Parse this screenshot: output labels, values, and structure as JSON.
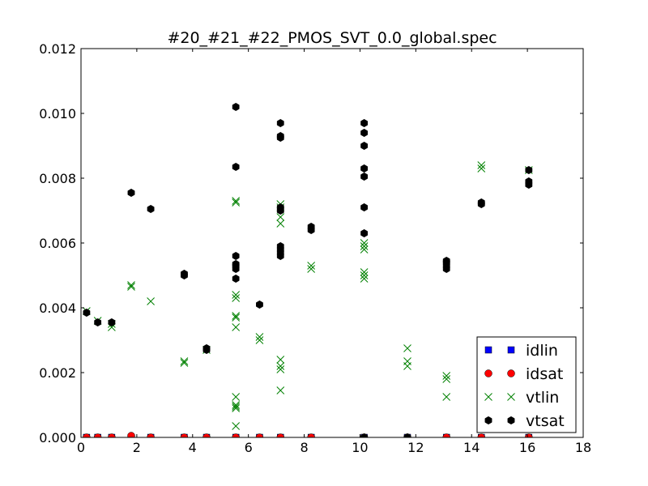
{
  "chart_data": {
    "type": "scatter",
    "title": "#20_#21_#22_PMOS_SVT_0.0_global.spec",
    "xlabel": "",
    "ylabel": "",
    "xlim": [
      0,
      18
    ],
    "ylim": [
      0,
      0.012
    ],
    "x_ticks": [
      "0",
      "2",
      "4",
      "6",
      "8",
      "10",
      "12",
      "14",
      "16",
      "18"
    ],
    "y_ticks": [
      "0.000",
      "0.002",
      "0.004",
      "0.006",
      "0.008",
      "0.010",
      "0.012"
    ],
    "grid": false,
    "legend_position": "lower-right",
    "series": [
      {
        "name": "idlin",
        "marker": "square",
        "color": "#0000ff",
        "points": [
          [
            0.2,
            0
          ],
          [
            0.6,
            0
          ],
          [
            1.1,
            0
          ],
          [
            1.8,
            0
          ],
          [
            2.5,
            0
          ],
          [
            3.7,
            0
          ],
          [
            4.5,
            0
          ],
          [
            5.55,
            0
          ],
          [
            6.4,
            0
          ],
          [
            7.15,
            0
          ],
          [
            8.25,
            0
          ],
          [
            10.15,
            0
          ],
          [
            11.7,
            0
          ],
          [
            13.1,
            0
          ],
          [
            14.35,
            0
          ],
          [
            16.05,
            0
          ]
        ]
      },
      {
        "name": "idsat",
        "marker": "circle",
        "color": "#ff0000",
        "points": [
          [
            0.2,
            0
          ],
          [
            0.6,
            0
          ],
          [
            1.1,
            0
          ],
          [
            1.8,
            5e-05
          ],
          [
            2.5,
            0
          ],
          [
            3.7,
            0
          ],
          [
            4.5,
            0
          ],
          [
            5.55,
            0
          ],
          [
            6.4,
            0
          ],
          [
            7.15,
            0
          ],
          [
            8.25,
            0
          ],
          [
            10.15,
            0
          ],
          [
            11.7,
            0
          ],
          [
            13.1,
            0
          ],
          [
            14.35,
            0
          ],
          [
            16.05,
            0
          ]
        ]
      },
      {
        "name": "vtlin",
        "marker": "x",
        "color": "#008000",
        "points": [
          [
            0.2,
            0.0039
          ],
          [
            0.6,
            0.0036
          ],
          [
            1.1,
            0.0035
          ],
          [
            1.1,
            0.0034
          ],
          [
            1.8,
            0.0047
          ],
          [
            1.8,
            0.00465
          ],
          [
            2.5,
            0.0042
          ],
          [
            3.7,
            0.00235
          ],
          [
            3.7,
            0.0023
          ],
          [
            4.5,
            0.0027
          ],
          [
            5.55,
            0.0073
          ],
          [
            5.55,
            0.00725
          ],
          [
            5.55,
            0.0044
          ],
          [
            5.55,
            0.0043
          ],
          [
            5.55,
            0.00375
          ],
          [
            5.55,
            0.0037
          ],
          [
            5.55,
            0.0034
          ],
          [
            5.55,
            0.00125
          ],
          [
            5.55,
            0.001
          ],
          [
            5.55,
            0.00095
          ],
          [
            5.55,
            0.0009
          ],
          [
            5.55,
            0.00035
          ],
          [
            6.4,
            0.0031
          ],
          [
            6.4,
            0.003
          ],
          [
            7.15,
            0.0072
          ],
          [
            7.15,
            0.0071
          ],
          [
            7.15,
            0.0068
          ],
          [
            7.15,
            0.0066
          ],
          [
            7.15,
            0.0024
          ],
          [
            7.15,
            0.0022
          ],
          [
            7.15,
            0.0021
          ],
          [
            7.15,
            0.00145
          ],
          [
            8.25,
            0.0053
          ],
          [
            8.25,
            0.0052
          ],
          [
            10.15,
            0.006
          ],
          [
            10.15,
            0.0059
          ],
          [
            10.15,
            0.0058
          ],
          [
            10.15,
            0.0051
          ],
          [
            10.15,
            0.005
          ],
          [
            10.15,
            0.0049
          ],
          [
            11.7,
            0.00275
          ],
          [
            11.7,
            0.00235
          ],
          [
            11.7,
            0.0022
          ],
          [
            13.1,
            0.0019
          ],
          [
            13.1,
            0.0018
          ],
          [
            13.1,
            0.00125
          ],
          [
            14.35,
            0.0084
          ],
          [
            14.35,
            0.0083
          ],
          [
            16.05,
            0.00825
          ]
        ]
      },
      {
        "name": "vtsat",
        "marker": "hexagon",
        "color": "#000000",
        "points": [
          [
            0.2,
            0.00385
          ],
          [
            0.6,
            0.00355
          ],
          [
            1.1,
            0.00355
          ],
          [
            1.8,
            0.00755
          ],
          [
            2.5,
            0.00705
          ],
          [
            3.7,
            0.00505
          ],
          [
            3.7,
            0.005
          ],
          [
            4.5,
            0.00275
          ],
          [
            4.5,
            0.0027
          ],
          [
            5.55,
            0.0102
          ],
          [
            5.55,
            0.00835
          ],
          [
            5.55,
            0.0056
          ],
          [
            5.55,
            0.00535
          ],
          [
            5.55,
            0.0053
          ],
          [
            5.55,
            0.0052
          ],
          [
            5.55,
            0.0049
          ],
          [
            6.4,
            0.0041
          ],
          [
            7.15,
            0.0097
          ],
          [
            7.15,
            0.0093
          ],
          [
            7.15,
            0.00925
          ],
          [
            7.15,
            0.0071
          ],
          [
            7.15,
            0.007
          ],
          [
            7.15,
            0.0059
          ],
          [
            7.15,
            0.0058
          ],
          [
            7.15,
            0.0057
          ],
          [
            7.15,
            0.0056
          ],
          [
            8.25,
            0.0065
          ],
          [
            8.25,
            0.0064
          ],
          [
            10.15,
            0.0097
          ],
          [
            10.15,
            0.0094
          ],
          [
            10.15,
            0.009
          ],
          [
            10.15,
            0.0083
          ],
          [
            10.15,
            0.00805
          ],
          [
            10.15,
            0.0071
          ],
          [
            10.15,
            0.0063
          ],
          [
            10.15,
            0.0
          ],
          [
            11.7,
            0.0
          ],
          [
            13.1,
            0.00545
          ],
          [
            13.1,
            0.0054
          ],
          [
            13.1,
            0.0053
          ],
          [
            13.1,
            0.0052
          ],
          [
            14.35,
            0.00725
          ],
          [
            14.35,
            0.0072
          ],
          [
            16.05,
            0.00825
          ],
          [
            16.05,
            0.0079
          ],
          [
            16.05,
            0.0078
          ]
        ]
      }
    ]
  }
}
